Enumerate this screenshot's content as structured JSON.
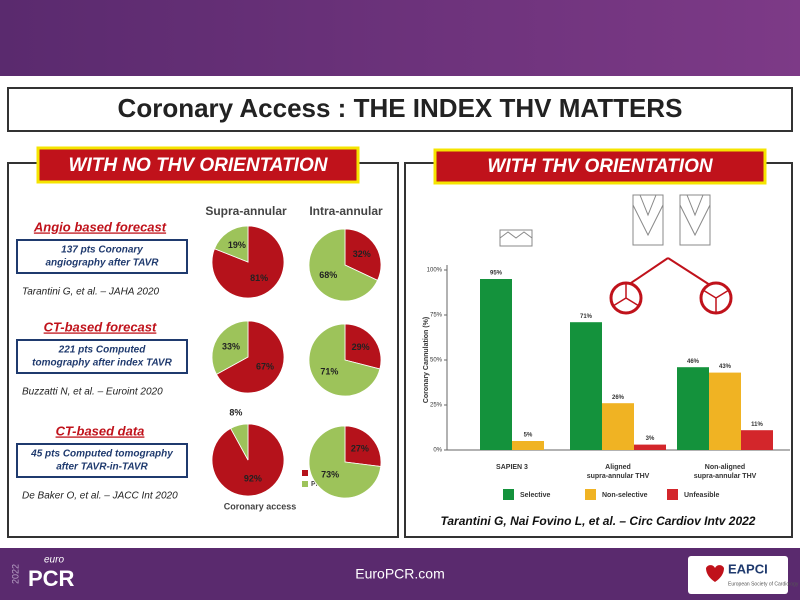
{
  "header": {
    "title": "Coronary Access : THE INDEX THV MATTERS"
  },
  "left_panel": {
    "heading": "WITH NO THV ORIENTATION",
    "columns": [
      "Supra-annular",
      "Intra-annular"
    ],
    "rows": [
      {
        "title": "Angio based forecast",
        "box": [
          "137 pts Coronary",
          "angiography after TAVR"
        ],
        "citation": "Tarantini G, et al. – JAHA 2020"
      },
      {
        "title": "CT-based forecast",
        "box": [
          "221 pts Computed",
          "tomography after index TAVR"
        ],
        "citation": "Buzzatti N, et al. – Euroint 2020"
      },
      {
        "title": "CT-based data",
        "box": [
          "45 pts Computed tomography",
          "after TAVR-in-TAVR"
        ],
        "citation": "De Baker O, et al. – JACC Int 2020"
      }
    ],
    "pie_caption": "Coronary access",
    "pie_legend": [
      {
        "name": "Impaired",
        "color": "#b5121b"
      },
      {
        "name": "Preserved",
        "color": "#9dc35a"
      }
    ]
  },
  "right_panel": {
    "heading": "WITH THV ORIENTATION",
    "citation": "Tarantini G, Nai Fovino L, et al. – Circ Cardiov Intv 2022"
  },
  "chart_data": [
    {
      "type": "pie",
      "values": [
        81,
        19
      ],
      "value_labels": [
        "81%",
        "19%"
      ]
    },
    {
      "type": "pie",
      "values": [
        32,
        68
      ],
      "value_labels": [
        "32%",
        "68%"
      ]
    },
    {
      "type": "pie",
      "values": [
        67,
        33
      ],
      "value_labels": [
        "67%",
        "33%"
      ]
    },
    {
      "type": "pie",
      "values": [
        29,
        71
      ],
      "value_labels": [
        "29%",
        "71%"
      ]
    },
    {
      "type": "pie",
      "values": [
        92,
        8
      ],
      "value_labels": [
        "92%",
        "8%"
      ]
    },
    {
      "type": "pie",
      "values": [
        27,
        73
      ],
      "value_labels": [
        "27%",
        "73%"
      ]
    },
    {
      "type": "bar",
      "categories": [
        [
          "SAPIEN 3"
        ],
        [
          "Aligned",
          "supra-annular THV"
        ],
        [
          "Non-aligned",
          "supra-annular THV"
        ]
      ],
      "ylabel": "Coronary Cannulation (%)",
      "ylim": [
        0,
        100
      ],
      "yticks": [
        {
          "value": 0,
          "label": "0%"
        },
        {
          "value": 25,
          "label": "25%"
        },
        {
          "value": 50,
          "label": "50%"
        },
        {
          "value": 75,
          "label": "75%"
        },
        {
          "value": 100,
          "label": "100%"
        }
      ],
      "series": [
        {
          "name": "Selective",
          "color": "#14923c",
          "values": [
            95,
            71,
            46
          ],
          "value_labels": [
            "95%",
            "71%",
            "46%"
          ]
        },
        {
          "name": "Non-selective",
          "color": "#f0b323",
          "values": [
            5,
            26,
            43
          ],
          "value_labels": [
            "5%",
            "26%",
            "43%"
          ]
        },
        {
          "name": "Unfeasible",
          "color": "#d3262b",
          "values": [
            null,
            3,
            11
          ],
          "value_labels": [
            null,
            "3%",
            "11%"
          ]
        }
      ]
    }
  ],
  "footer": {
    "brand_small": "euro",
    "brand": "PCR",
    "year": "2022",
    "url": "EuroPCR.com",
    "logo": "EAPCI",
    "logo_sub": "European Society of Cardiology"
  }
}
